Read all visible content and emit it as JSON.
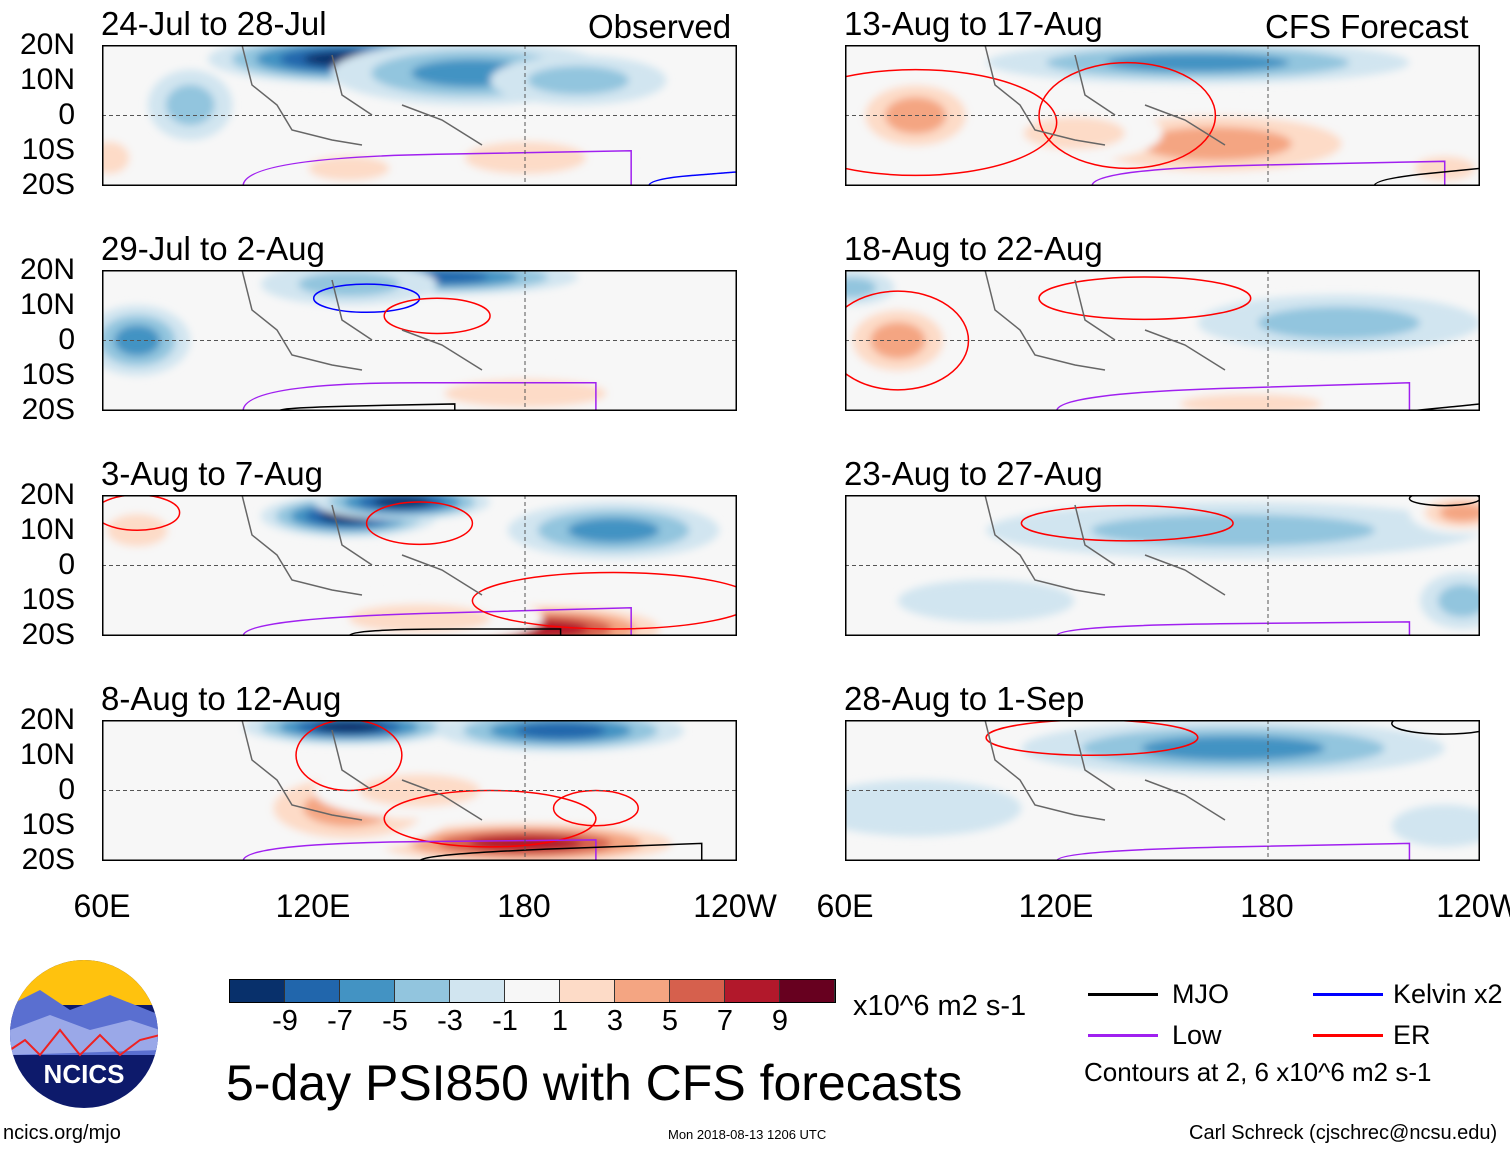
{
  "headers": {
    "observed": "Observed",
    "forecast": "CFS Forecast"
  },
  "lat_labels": [
    "20N",
    "10N",
    "0",
    "10S",
    "20S"
  ],
  "lon_labels": [
    "60E",
    "120E",
    "180",
    "120W"
  ],
  "colors": [
    "#08306b",
    "#2166ac",
    "#4393c3",
    "#92c5de",
    "#d1e5f0",
    "#f7f7f7",
    "#fddbc7",
    "#f4a582",
    "#d6604d",
    "#b2182b",
    "#67001f"
  ],
  "contour_colors": {
    "MJO": "#000000",
    "Low": "#a020f0",
    "Kelvin": "#0000ff",
    "ER": "#ff0000"
  },
  "panels": [
    {
      "title": "24-Jul to 28-Jul",
      "blobs": [
        [
          130,
          16,
          40,
          7,
          -9
        ],
        [
          165,
          12,
          40,
          9,
          -5
        ],
        [
          195,
          10,
          25,
          7,
          -3
        ],
        [
          85,
          3,
          12,
          10,
          -3
        ],
        [
          180,
          -12,
          30,
          8,
          3
        ],
        [
          130,
          -15,
          20,
          6,
          3
        ],
        [
          62,
          -12,
          10,
          8,
          3
        ]
      ],
      "contours": [
        [
          "Low",
          100,
          -12,
          210,
          -10
        ],
        [
          "MJO",
          100,
          -20,
          140,
          -20
        ],
        [
          "Kelvin",
          215,
          -18,
          245,
          -16
        ]
      ]
    },
    {
      "title": "13-Aug to 17-Aug",
      "blobs": [
        [
          160,
          15,
          60,
          6,
          -5
        ],
        [
          80,
          0,
          20,
          12,
          5
        ],
        [
          165,
          -8,
          50,
          11,
          5
        ],
        [
          125,
          -5,
          25,
          8,
          3
        ],
        [
          230,
          -15,
          15,
          6,
          3
        ]
      ],
      "contours": [
        [
          "ER",
          80,
          -2,
          40,
          15
        ],
        [
          "ER",
          140,
          0,
          25,
          15
        ],
        [
          "Low",
          130,
          -15,
          230,
          -13
        ],
        [
          "MJO",
          210,
          -18,
          240,
          -15
        ]
      ]
    },
    {
      "title": "29-Jul to 2-Aug",
      "blobs": [
        [
          155,
          18,
          40,
          5,
          -7
        ],
        [
          70,
          0,
          15,
          10,
          -5
        ],
        [
          130,
          16,
          25,
          6,
          -3
        ],
        [
          180,
          -15,
          40,
          7,
          3
        ],
        [
          150,
          6,
          25,
          5,
          1
        ]
      ],
      "contours": [
        [
          "Kelvin",
          135,
          12,
          15,
          4
        ],
        [
          "ER",
          155,
          7,
          15,
          5
        ],
        [
          "Low",
          100,
          -12,
          200,
          -12
        ],
        [
          "MJO",
          110,
          -19,
          160,
          -18
        ]
      ]
    },
    {
      "title": "18-Aug to 22-Aug",
      "blobs": [
        [
          75,
          0,
          18,
          12,
          5
        ],
        [
          200,
          5,
          40,
          8,
          -3
        ],
        [
          62,
          15,
          12,
          5,
          -3
        ],
        [
          175,
          -18,
          35,
          5,
          3
        ],
        [
          130,
          10,
          20,
          8,
          1
        ]
      ],
      "contours": [
        [
          "ER",
          75,
          0,
          20,
          14
        ],
        [
          "ER",
          145,
          12,
          30,
          6
        ],
        [
          "Low",
          120,
          -15,
          220,
          -12
        ],
        [
          "MJO",
          220,
          -20,
          240,
          -18
        ]
      ]
    },
    {
      "title": "3-Aug to 7-Aug",
      "blobs": [
        [
          130,
          14,
          25,
          6,
          -9
        ],
        [
          145,
          18,
          25,
          5,
          -9
        ],
        [
          205,
          10,
          30,
          8,
          -5
        ],
        [
          70,
          10,
          15,
          8,
          3
        ],
        [
          185,
          -18,
          40,
          8,
          9
        ],
        [
          150,
          -15,
          35,
          7,
          3
        ]
      ],
      "contours": [
        [
          "ER",
          150,
          12,
          15,
          6
        ],
        [
          "ER",
          70,
          15,
          12,
          5
        ],
        [
          "Low",
          100,
          -15,
          210,
          -12
        ],
        [
          "MJO",
          130,
          -18,
          190,
          -18
        ],
        [
          "ER",
          205,
          -10,
          40,
          8
        ]
      ]
    },
    {
      "title": "23-Aug to 27-Aug",
      "blobs": [
        [
          170,
          10,
          70,
          8,
          -3
        ],
        [
          235,
          15,
          15,
          6,
          5
        ],
        [
          235,
          -10,
          12,
          8,
          -3
        ],
        [
          100,
          -10,
          25,
          6,
          -1
        ]
      ],
      "contours": [
        [
          "ER",
          140,
          12,
          30,
          5
        ],
        [
          "Low",
          120,
          -17,
          220,
          -16
        ],
        [
          "MJO",
          230,
          19,
          10,
          2
        ]
      ]
    },
    {
      "title": "8-Aug to 12-Aug",
      "blobs": [
        [
          130,
          18,
          30,
          5,
          -9
        ],
        [
          190,
          17,
          35,
          6,
          -7
        ],
        [
          180,
          -15,
          50,
          7,
          9
        ],
        [
          130,
          -5,
          30,
          12,
          5
        ],
        [
          150,
          0,
          30,
          8,
          3
        ]
      ],
      "contours": [
        [
          "ER",
          130,
          10,
          15,
          10
        ],
        [
          "ER",
          170,
          -8,
          30,
          8
        ],
        [
          "ER",
          200,
          -5,
          12,
          5
        ],
        [
          "Low",
          100,
          -15,
          200,
          -14
        ],
        [
          "MJO",
          150,
          -18,
          230,
          -15
        ]
      ]
    },
    {
      "title": "28-Aug to 1-Sep",
      "blobs": [
        [
          170,
          12,
          60,
          8,
          -5
        ],
        [
          80,
          -5,
          30,
          8,
          -1
        ],
        [
          230,
          -10,
          15,
          6,
          -1
        ]
      ],
      "contours": [
        [
          "ER",
          130,
          15,
          30,
          5
        ],
        [
          "MJO",
          230,
          19,
          15,
          3
        ],
        [
          "Low",
          120,
          -17,
          220,
          -15
        ]
      ]
    }
  ],
  "colorbar": {
    "labels": [
      "-9",
      "-7",
      "-5",
      "-3",
      "-1",
      "1",
      "3",
      "5",
      "7",
      "9"
    ],
    "units": "x10^6 m2 s-1"
  },
  "legend": {
    "mjo": "MJO",
    "kelvin": "Kelvin x2",
    "low": "Low",
    "er": "ER",
    "note": "Contours at 2, 6 x10^6 m2 s-1"
  },
  "title": "5-day PSI850 with CFS forecasts",
  "logo": "NCICS",
  "footer": {
    "url": "ncics.org/mjo",
    "timestamp": "Mon 2018-08-13 1206 UTC",
    "author": "Carl Schreck (cjschrec@ncsu.edu)"
  }
}
